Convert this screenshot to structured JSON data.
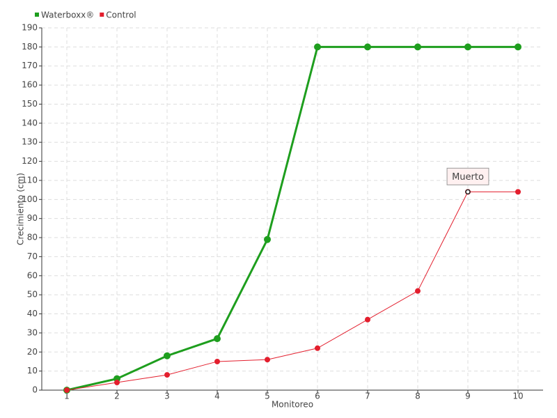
{
  "chart_data": {
    "type": "line",
    "x_label": "Monitoreo",
    "y_label": "Crecimiento (cm)",
    "x": [
      1,
      2,
      3,
      4,
      5,
      6,
      7,
      8,
      9,
      10
    ],
    "series": [
      {
        "name": "Waterboxx®",
        "color": "#1e9e1e",
        "values": [
          0,
          6,
          18,
          27,
          79,
          180,
          180,
          180,
          180,
          180
        ]
      },
      {
        "name": "Control",
        "color": "#e31e2d",
        "values": [
          0,
          4,
          8,
          15,
          16,
          22,
          37,
          52,
          104,
          104
        ]
      }
    ],
    "xlim": [
      0.5,
      10.5
    ],
    "xticks": [
      1,
      2,
      3,
      4,
      5,
      6,
      7,
      8,
      9,
      10
    ],
    "ylim": [
      0,
      190
    ],
    "yticks": [
      0,
      10,
      20,
      30,
      40,
      50,
      60,
      70,
      80,
      90,
      100,
      110,
      120,
      130,
      140,
      150,
      160,
      170,
      180,
      190
    ],
    "grid": true,
    "legend": "top-left",
    "annotations": [
      {
        "text": "Muerto",
        "x": 9,
        "y": 104
      }
    ]
  }
}
